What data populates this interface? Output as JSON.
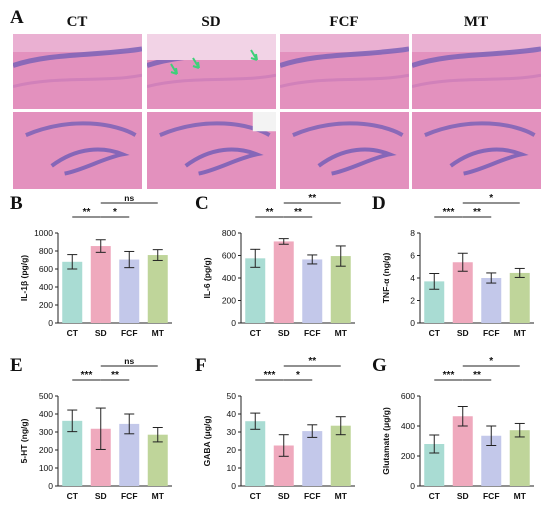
{
  "figure": {
    "panel_a": {
      "letter": "A",
      "groups": [
        "CT",
        "SD",
        "FCF",
        "MT"
      ]
    },
    "panel_letters": [
      "B",
      "C",
      "D",
      "E",
      "F",
      "G"
    ],
    "colors": {
      "CT": "#a9dcd3",
      "SD": "#efa9bd",
      "FCF": "#c3c8ea",
      "MT": "#bfd59a",
      "tissue": "#e391be",
      "nuclei": "#7b62b7",
      "arrow": "#3fcf7a"
    }
  },
  "chart_data": [
    {
      "type": "bar",
      "panel": "B",
      "ylabel": "IL-1β (pg/g)",
      "categories": [
        "CT",
        "SD",
        "FCF",
        "MT"
      ],
      "values": [
        680,
        855,
        705,
        755
      ],
      "errors": [
        80,
        70,
        90,
        60
      ],
      "ylim": [
        0,
        1000
      ],
      "yticks": [
        "0",
        "200",
        "400",
        "600",
        "800",
        "1000"
      ],
      "significance": [
        {
          "from": 0,
          "to": 1,
          "label": "**",
          "level": 0
        },
        {
          "from": 1,
          "to": 2,
          "label": "*",
          "level": 0
        },
        {
          "from": 1,
          "to": 3,
          "label": "ns",
          "level": 1
        }
      ]
    },
    {
      "type": "bar",
      "panel": "C",
      "ylabel": "IL-6 (pg/g)",
      "categories": [
        "CT",
        "SD",
        "FCF",
        "MT"
      ],
      "values": [
        575,
        725,
        565,
        595
      ],
      "errors": [
        80,
        25,
        40,
        90
      ],
      "ylim": [
        0,
        800
      ],
      "yticks": [
        "0",
        "200",
        "400",
        "600",
        "800"
      ],
      "significance": [
        {
          "from": 0,
          "to": 1,
          "label": "**",
          "level": 0
        },
        {
          "from": 1,
          "to": 2,
          "label": "**",
          "level": 0
        },
        {
          "from": 1,
          "to": 3,
          "label": "**",
          "level": 1
        }
      ]
    },
    {
      "type": "bar",
      "panel": "D",
      "ylabel": "TNF-α (ng/g)",
      "categories": [
        "CT",
        "SD",
        "FCF",
        "MT"
      ],
      "values": [
        3.7,
        5.4,
        4.0,
        4.45
      ],
      "errors": [
        0.7,
        0.8,
        0.45,
        0.4
      ],
      "ylim": [
        0,
        8
      ],
      "yticks": [
        "0",
        "2",
        "4",
        "6",
        "8"
      ],
      "significance": [
        {
          "from": 0,
          "to": 1,
          "label": "***",
          "level": 0
        },
        {
          "from": 1,
          "to": 2,
          "label": "**",
          "level": 0
        },
        {
          "from": 1,
          "to": 3,
          "label": "*",
          "level": 1
        }
      ]
    },
    {
      "type": "bar",
      "panel": "E",
      "ylabel": "5-HT (ng/g)",
      "categories": [
        "CT",
        "SD",
        "FCF",
        "MT"
      ],
      "values": [
        362,
        318,
        345,
        285
      ],
      "errors": [
        60,
        115,
        55,
        40
      ],
      "ylim": [
        0,
        500
      ],
      "yticks": [
        "0",
        "100",
        "200",
        "300",
        "400",
        "500"
      ],
      "significance": [
        {
          "from": 0,
          "to": 1,
          "label": "***",
          "level": 0
        },
        {
          "from": 1,
          "to": 2,
          "label": "**",
          "level": 0
        },
        {
          "from": 1,
          "to": 3,
          "label": "ns",
          "level": 1
        }
      ]
    },
    {
      "type": "bar",
      "panel": "F",
      "ylabel": "GABA (μg/g)",
      "categories": [
        "CT",
        "SD",
        "FCF",
        "MT"
      ],
      "values": [
        36,
        22.5,
        30.5,
        33.5
      ],
      "errors": [
        4.5,
        6,
        3.5,
        5
      ],
      "ylim": [
        0,
        50
      ],
      "yticks": [
        "0",
        "10",
        "20",
        "30",
        "40",
        "50"
      ],
      "significance": [
        {
          "from": 0,
          "to": 1,
          "label": "***",
          "level": 0
        },
        {
          "from": 1,
          "to": 2,
          "label": "*",
          "level": 0
        },
        {
          "from": 1,
          "to": 3,
          "label": "**",
          "level": 1
        }
      ]
    },
    {
      "type": "bar",
      "panel": "G",
      "ylabel": "Glutamate (μg/g)",
      "categories": [
        "CT",
        "SD",
        "FCF",
        "MT"
      ],
      "values": [
        280,
        465,
        335,
        372
      ],
      "errors": [
        60,
        65,
        65,
        45
      ],
      "ylim": [
        0,
        600
      ],
      "yticks": [
        "0",
        "200",
        "400",
        "600"
      ],
      "significance": [
        {
          "from": 0,
          "to": 1,
          "label": "***",
          "level": 0
        },
        {
          "from": 1,
          "to": 2,
          "label": "**",
          "level": 0
        },
        {
          "from": 1,
          "to": 3,
          "label": "*",
          "level": 1
        }
      ]
    }
  ]
}
